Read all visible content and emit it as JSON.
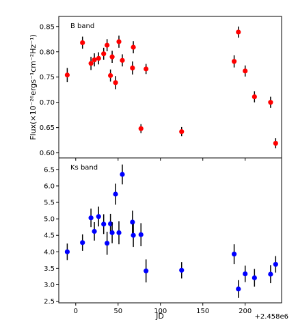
{
  "chart_data": [
    {
      "type": "scatter",
      "title": "",
      "band_label": "B band",
      "xlabel": "",
      "ylabel": "Flux(×10⁻²⁶ergs⁻¹cm⁻²Hz⁻¹)",
      "xlim": [
        -20,
        243
      ],
      "ylim": [
        0.59,
        0.87
      ],
      "xticks": [
        0,
        50,
        100,
        150,
        200
      ],
      "yticks": [
        0.6,
        0.65,
        0.7,
        0.75,
        0.8,
        0.85
      ],
      "ytick_labels": [
        "0.60",
        "0.65",
        "0.70",
        "0.75",
        "0.80",
        "0.85"
      ],
      "grid": false,
      "legend": "none",
      "marker_color": "#ff0000",
      "points": [
        {
          "x": -10,
          "y": 0.754,
          "err": 0.014
        },
        {
          "x": 8,
          "y": 0.818,
          "err": 0.012
        },
        {
          "x": 18,
          "y": 0.777,
          "err": 0.013
        },
        {
          "x": 22,
          "y": 0.784,
          "err": 0.013
        },
        {
          "x": 27,
          "y": 0.787,
          "err": 0.012
        },
        {
          "x": 33,
          "y": 0.796,
          "err": 0.012
        },
        {
          "x": 37,
          "y": 0.813,
          "err": 0.012
        },
        {
          "x": 41,
          "y": 0.753,
          "err": 0.012
        },
        {
          "x": 43,
          "y": 0.79,
          "err": 0.012
        },
        {
          "x": 47,
          "y": 0.739,
          "err": 0.013
        },
        {
          "x": 51,
          "y": 0.82,
          "err": 0.012
        },
        {
          "x": 55,
          "y": 0.783,
          "err": 0.012
        },
        {
          "x": 67,
          "y": 0.768,
          "err": 0.013
        },
        {
          "x": 68,
          "y": 0.809,
          "err": 0.012
        },
        {
          "x": 77,
          "y": 0.648,
          "err": 0.009
        },
        {
          "x": 83,
          "y": 0.766,
          "err": 0.01
        },
        {
          "x": 125,
          "y": 0.642,
          "err": 0.009
        },
        {
          "x": 187,
          "y": 0.781,
          "err": 0.012
        },
        {
          "x": 192,
          "y": 0.839,
          "err": 0.011
        },
        {
          "x": 200,
          "y": 0.762,
          "err": 0.011
        },
        {
          "x": 211,
          "y": 0.711,
          "err": 0.011
        },
        {
          "x": 230,
          "y": 0.7,
          "err": 0.011
        },
        {
          "x": 236,
          "y": 0.619,
          "err": 0.01
        }
      ]
    },
    {
      "type": "scatter",
      "title": "",
      "band_label": "Ks band",
      "xlabel": "JD",
      "ylabel": "",
      "x_offset_label": "+2.458e6",
      "xlim": [
        -20,
        243
      ],
      "ylim": [
        2.45,
        6.85
      ],
      "xticks": [
        0,
        50,
        100,
        150,
        200
      ],
      "xtick_labels": [
        "0",
        "50",
        "100",
        "150",
        "200"
      ],
      "yticks": [
        2.5,
        3.0,
        3.5,
        4.0,
        4.5,
        5.0,
        5.5,
        6.0,
        6.5
      ],
      "ytick_labels": [
        "2.5",
        "3.0",
        "3.5",
        "4.0",
        "4.5",
        "5.0",
        "5.5",
        "6.0",
        "6.5"
      ],
      "grid": false,
      "legend": "none",
      "marker_color": "#0000ff",
      "points": [
        {
          "x": -10,
          "y": 4.0,
          "err": 0.25
        },
        {
          "x": 8,
          "y": 4.28,
          "err": 0.25
        },
        {
          "x": 18,
          "y": 5.03,
          "err": 0.28
        },
        {
          "x": 22,
          "y": 4.62,
          "err": 0.28
        },
        {
          "x": 27,
          "y": 5.07,
          "err": 0.3
        },
        {
          "x": 33,
          "y": 4.84,
          "err": 0.3
        },
        {
          "x": 37,
          "y": 4.26,
          "err": 0.35
        },
        {
          "x": 41,
          "y": 4.85,
          "err": 0.3
        },
        {
          "x": 43,
          "y": 4.58,
          "err": 0.32
        },
        {
          "x": 47,
          "y": 5.75,
          "err": 0.32
        },
        {
          "x": 51,
          "y": 4.58,
          "err": 0.35
        },
        {
          "x": 55,
          "y": 6.35,
          "err": 0.3
        },
        {
          "x": 67,
          "y": 4.9,
          "err": 0.35
        },
        {
          "x": 68,
          "y": 4.5,
          "err": 0.35
        },
        {
          "x": 77,
          "y": 4.52,
          "err": 0.35
        },
        {
          "x": 83,
          "y": 3.42,
          "err": 0.35
        },
        {
          "x": 125,
          "y": 3.44,
          "err": 0.25
        },
        {
          "x": 187,
          "y": 3.93,
          "err": 0.3
        },
        {
          "x": 192,
          "y": 2.87,
          "err": 0.27
        },
        {
          "x": 200,
          "y": 3.33,
          "err": 0.25
        },
        {
          "x": 211,
          "y": 3.21,
          "err": 0.27
        },
        {
          "x": 230,
          "y": 3.32,
          "err": 0.27
        },
        {
          "x": 236,
          "y": 3.62,
          "err": 0.25
        }
      ]
    }
  ]
}
